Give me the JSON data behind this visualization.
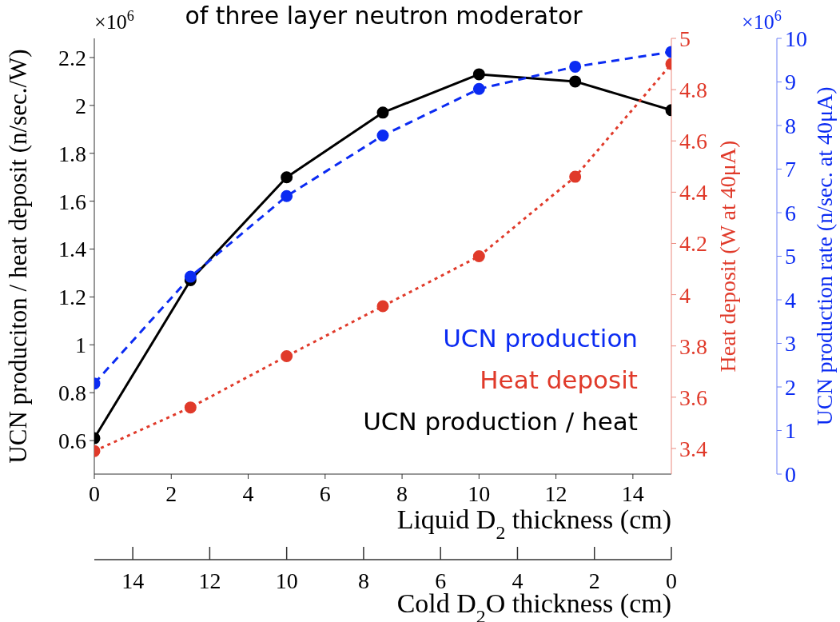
{
  "chart_data": {
    "type": "line",
    "title": "of three layer neutron moderator",
    "x": [
      0,
      2.5,
      5,
      7.5,
      10,
      12.5,
      15
    ],
    "xlabel": "Liquid D$_{2}$ thickness (cm)",
    "xlim": [
      0,
      15
    ],
    "xticks": [
      0,
      2,
      4,
      6,
      8,
      10,
      12,
      14
    ],
    "x2label": "Cold D$_{2}$O thickness (cm)",
    "x2lim": [
      15,
      0
    ],
    "x2ticks": [
      14,
      12,
      10,
      8,
      6,
      4,
      2,
      0
    ],
    "ylabel": "UCN produciton / heat deposit (n/sec./W)",
    "ylim": [
      0.46,
      2.28
    ],
    "yticks": [
      0.6,
      0.8,
      {
        "value": 1,
        "label": "1"
      },
      1.2,
      1.4,
      1.6,
      1.8,
      {
        "value": 2,
        "label": "2"
      },
      2.2
    ],
    "y2label": "Heat deposit (W at 40μA)",
    "y2lim": [
      3.3,
      5
    ],
    "y2ticks": [
      3.4,
      3.6,
      3.8,
      {
        "value": 4,
        "label": "4"
      },
      4.2,
      4.4,
      4.6,
      4.8,
      {
        "value": 5,
        "label": "5"
      }
    ],
    "y3label": "UCN production rate (n/sec. at 40μA)",
    "y3lim": [
      0,
      10
    ],
    "y3ticks": [
      0,
      1,
      2,
      3,
      4,
      5,
      6,
      7,
      8,
      9,
      10
    ],
    "annotations": [
      "×10$^{6}$",
      "×10$^{6}$"
    ],
    "legend": "bottom right",
    "marker": "circle",
    "series": [
      {
        "name": "UCN production",
        "color": "#0b2bf2",
        "axis": "y3",
        "line_style": "dashed",
        "values": [
          2.08,
          4.53,
          6.38,
          7.77,
          8.84,
          9.35,
          9.69
        ]
      },
      {
        "name": "Heat deposit",
        "color": "#e03a2a",
        "axis": "y2",
        "line_style": "dotted",
        "values": [
          3.39,
          3.56,
          3.76,
          3.955,
          4.15,
          4.46,
          4.9
        ]
      },
      {
        "name": "UCN production / heat",
        "color": "#000000",
        "axis": "y",
        "line_style": "solid",
        "values": [
          0.61,
          1.27,
          1.7,
          1.97,
          2.13,
          2.1,
          1.98
        ]
      }
    ]
  }
}
